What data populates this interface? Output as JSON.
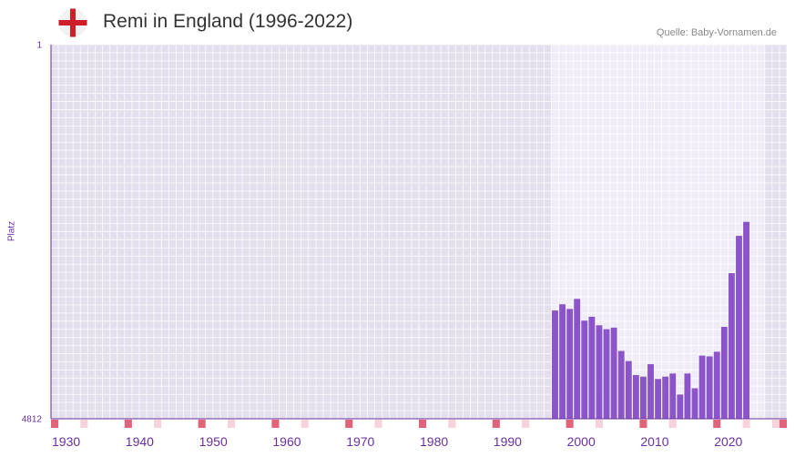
{
  "header": {
    "title": "Remi in England (1996-2022)",
    "source": "Quelle: Baby-Vornamen.de"
  },
  "colors": {
    "bar": "#8b55c9",
    "axis": "#6a2fa0",
    "plot_bg": "#e3dfec",
    "plot_bg_active": "#f0ecf7",
    "decade_marker": "#e0637a",
    "minor_marker": "#f6d2da",
    "flag_cross": "#cc1f2b"
  },
  "chart_data": {
    "type": "bar",
    "title": "Remi in England (1996-2022)",
    "xlabel": "",
    "ylabel": "Platz",
    "ylim": [
      4812,
      1
    ],
    "y_ticks": [
      "1",
      "4812"
    ],
    "x_range": [
      1926,
      2026
    ],
    "x_ticks": [
      "1930",
      "1940",
      "1950",
      "1960",
      "1970",
      "1980",
      "1990",
      "2000",
      "2010",
      "2020"
    ],
    "highlight_range": [
      1996,
      2023
    ],
    "years": [
      1996,
      1997,
      1998,
      1999,
      2000,
      2001,
      2002,
      2003,
      2004,
      2005,
      2006,
      2007,
      2008,
      2009,
      2010,
      2011,
      2012,
      2013,
      2014,
      2015,
      2016,
      2017,
      2018,
      2019,
      2020,
      2021,
      2022
    ],
    "values": [
      3420,
      3340,
      3400,
      3270,
      3550,
      3500,
      3610,
      3660,
      3640,
      3940,
      4070,
      4250,
      4270,
      4110,
      4300,
      4270,
      4230,
      4500,
      4230,
      4420,
      4000,
      4010,
      3950,
      3630,
      2940,
      2460,
      2280
    ]
  }
}
